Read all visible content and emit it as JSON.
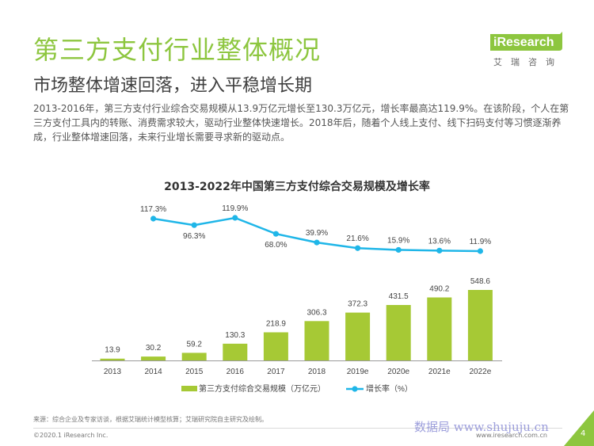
{
  "header": {
    "title": "第三方支付行业整体概况",
    "subtitle": "市场整体增速回落，进入平稳增长期",
    "description": "2013-2016年，第三方支付行业综合交易规模从13.9万亿元增长至130.3万亿元，增长率最高达119.9%。在该阶段，个人在第三方支付工具内的转账、消费需求较大，驱动行业整体快速增长。2018年后，随着个人线上支付、线下扫码支付等习惯逐渐养成，行业整体增速回落，未来行业增长需要寻求新的驱动点。"
  },
  "logo": {
    "brand": "iResearch",
    "tagline": "艾瑞咨询"
  },
  "colors": {
    "accent": "#8dc63f",
    "bar": "#a6c935",
    "line": "#1fb6e8",
    "title_green": "#8dc63f"
  },
  "chart_data": {
    "type": "bar",
    "title": "2013-2022年中国第三方支付综合交易规模及增长率",
    "categories": [
      "2013",
      "2014",
      "2015",
      "2016",
      "2017",
      "2018",
      "2019e",
      "2020e",
      "2021e",
      "2022e"
    ],
    "series": [
      {
        "name": "第三方支付综合交易规模（万亿元）",
        "type": "bar",
        "values": [
          13.9,
          30.2,
          59.2,
          130.3,
          218.9,
          306.3,
          372.3,
          431.5,
          490.2,
          548.6
        ],
        "labels": [
          "13.9",
          "30.2",
          "59.2",
          "130.3",
          "218.9",
          "306.3",
          "372.3",
          "431.5",
          "490.2",
          "548.6"
        ]
      },
      {
        "name": "增长率（%）",
        "type": "line",
        "values": [
          null,
          117.3,
          96.3,
          119.9,
          68.0,
          39.9,
          21.6,
          15.9,
          13.6,
          11.9
        ],
        "labels": [
          "",
          "117.3%",
          "96.3%",
          "119.9%",
          "68.0%",
          "39.9%",
          "21.6%",
          "15.9%",
          "13.6%",
          "11.9%"
        ]
      }
    ],
    "bar_ylim": [
      0,
      600
    ],
    "line_ylim": [
      0,
      120
    ],
    "legend_position": "bottom"
  },
  "footer": {
    "source": "来源：综合企业及专家访谈，根据艾瑞统计模型核算；艾瑞研究院自主研究及绘制。",
    "copyright": "©2020.1 iResearch Inc.",
    "website": "www.iresearch.com.cn",
    "page": "4",
    "watermark": "数据局 www.shujuju.cn"
  }
}
